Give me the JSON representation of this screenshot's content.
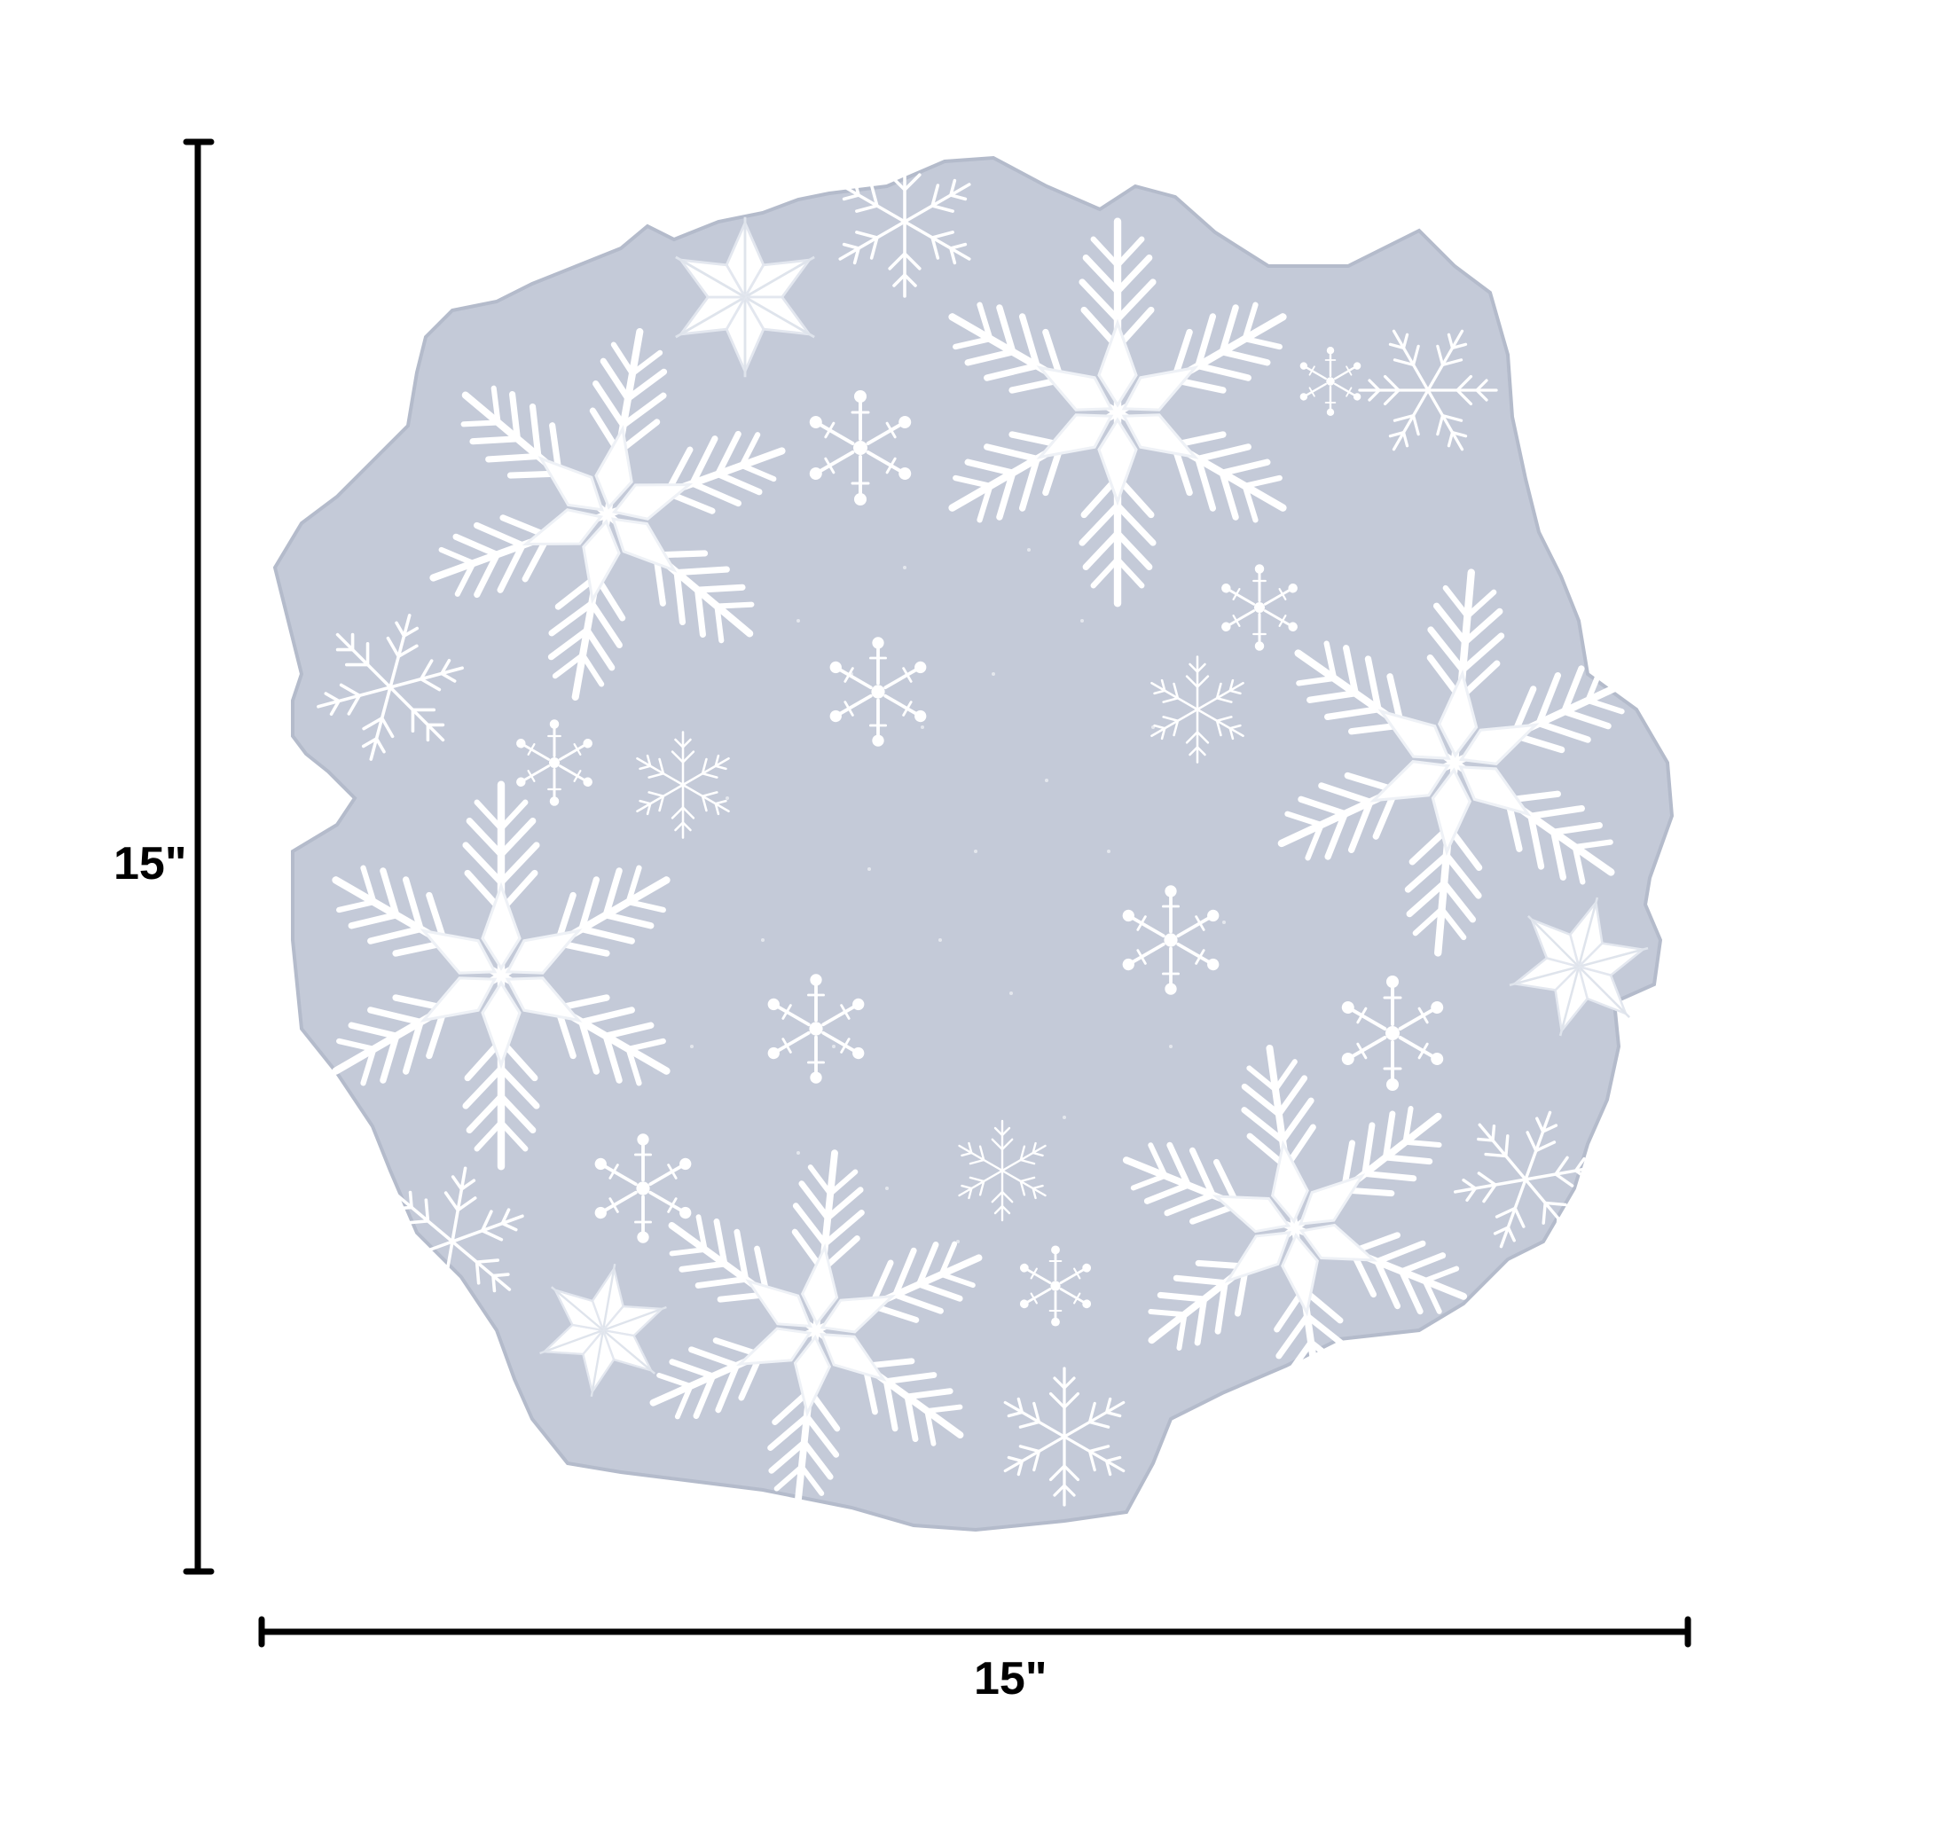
{
  "dimensions": {
    "height_label": "15\"",
    "width_label": "15\""
  },
  "colors": {
    "background": "#ffffff",
    "doily_fabric": "#c4cad8",
    "doily_edge": "#b6bdcc",
    "embroidery": "#ffffff",
    "dimension_line": "#000000"
  },
  "icons": {
    "doily": "snowflake-doily-icon",
    "large_snowflake": "snowflake-icon",
    "star_snowflake": "star-snowflake-icon",
    "spark_snowflake": "sparkle-snowflake-icon"
  }
}
